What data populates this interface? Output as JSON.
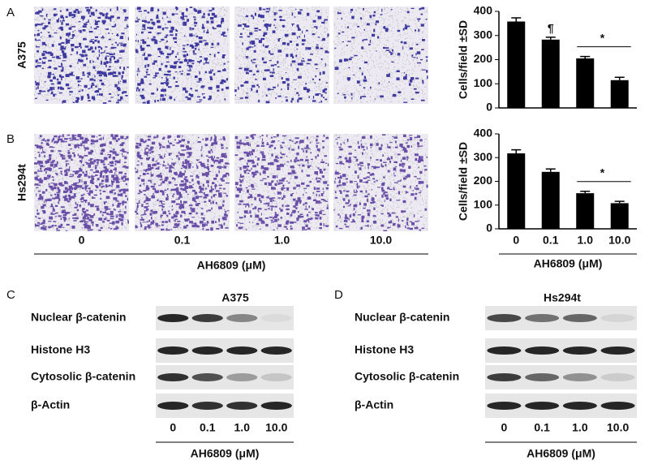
{
  "panels": {
    "a": "A",
    "b": "B",
    "c": "C",
    "d": "D"
  },
  "micrographs": {
    "rows": [
      "A375",
      "Hs294t"
    ],
    "categories": [
      "0",
      "0.1",
      "1.0",
      "10.0"
    ],
    "x_label": "AH6809 (μM)"
  },
  "chart_data": [
    {
      "type": "bar",
      "ylabel": "Cells/field ±SD",
      "categories": [
        null,
        null,
        null,
        null
      ],
      "values": [
        358,
        283,
        205,
        115
      ],
      "errors": [
        15,
        10,
        8,
        12
      ],
      "color": "#000000",
      "ylim": [
        0,
        400
      ],
      "yticks": [
        0,
        100,
        200,
        300,
        400
      ],
      "annotations": [
        "¶",
        "*"
      ]
    },
    {
      "type": "bar",
      "ylabel": "Cells/field ±SD",
      "categories": [
        "0",
        "0.1",
        "1.0",
        "10.0"
      ],
      "xlabel": "AH6809 (μM)",
      "values": [
        318,
        240,
        150,
        108
      ],
      "errors": [
        15,
        12,
        8,
        8
      ],
      "color": "#000000",
      "ylim": [
        0,
        400
      ],
      "yticks": [
        0,
        100,
        200,
        300,
        400
      ],
      "annotations": [
        "*"
      ]
    }
  ],
  "blots": [
    {
      "title": "A375",
      "rows": [
        "Nuclear β-catenin",
        "Histone H3",
        "Cytosolic β-catenin",
        "β-Actin"
      ],
      "categories": [
        "0",
        "0.1",
        "1.0",
        "10.0"
      ],
      "x_label": "AH6809 (μM)"
    },
    {
      "title": "Hs294t",
      "rows": [
        "Nuclear β-catenin",
        "Histone H3",
        "Cytosolic β-catenin",
        "β-Actin"
      ],
      "categories": [
        "0",
        "0.1",
        "1.0",
        "10.0"
      ],
      "x_label": "AH6809 (μM)"
    }
  ]
}
